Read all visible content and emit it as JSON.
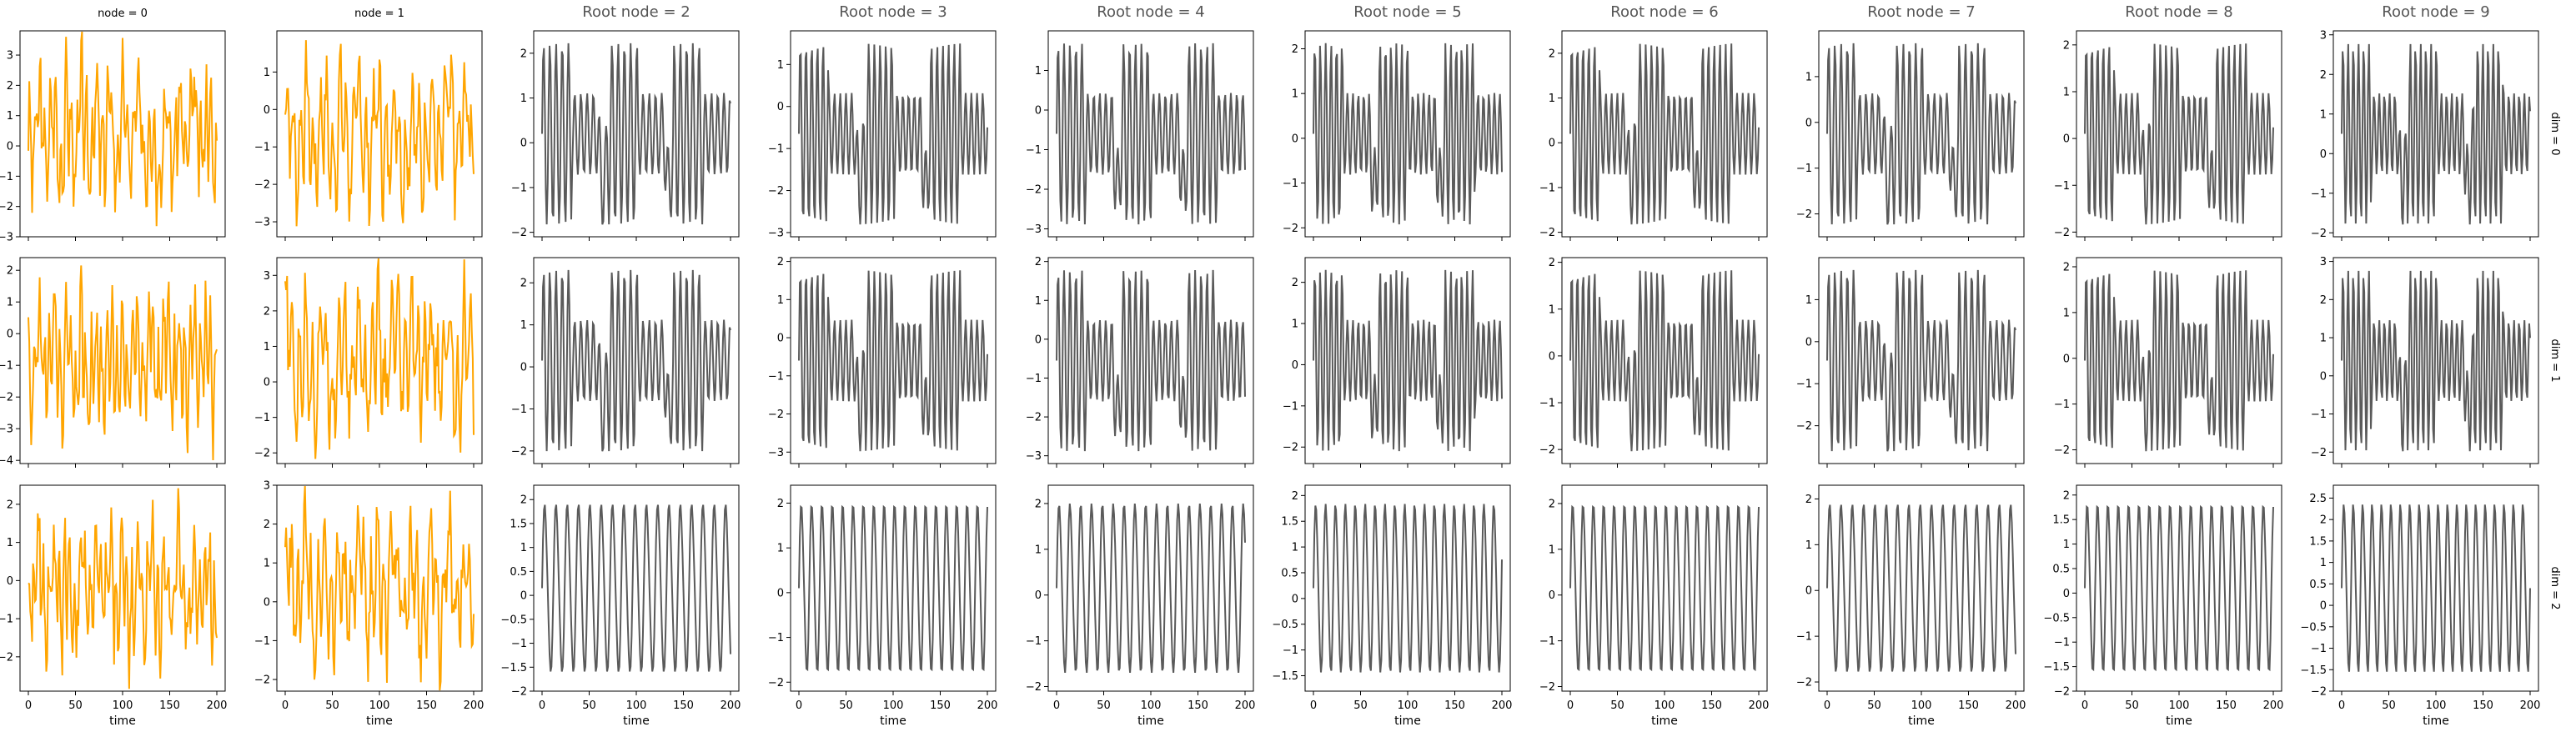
{
  "figure": {
    "xlabel": "time",
    "colors": {
      "observed": "#FFA500",
      "latent": "#5a5a5a",
      "axis": "#000000",
      "title_latent": "#555555"
    }
  },
  "chart_data": {
    "type": "line",
    "x": [
      0,
      200
    ],
    "xticks": [
      0,
      50,
      100,
      150,
      200
    ],
    "xlabel": "time",
    "rows": [
      "dim = 0",
      "dim = 1",
      "dim = 2"
    ],
    "columns": [
      {
        "title": "node = 0",
        "kind": "observed",
        "color": "#FFA500",
        "period": 5.5,
        "amp": 1.2,
        "seed": 3
      },
      {
        "title": "node = 1",
        "kind": "observed",
        "color": "#FFA500",
        "period": 7.0,
        "amp": 1.6,
        "seed": 7
      },
      {
        "title": "Root node = 2",
        "kind": "latent",
        "color": "#5a5a5a",
        "period": 12,
        "seed": 11
      },
      {
        "title": "Root node = 3",
        "kind": "latent",
        "color": "#5a5a5a",
        "period": 11,
        "seed": 13
      },
      {
        "title": "Root node = 4",
        "kind": "latent",
        "color": "#5a5a5a",
        "period": 11.5,
        "seed": 17
      },
      {
        "title": "Root node = 5",
        "kind": "latent",
        "color": "#5a5a5a",
        "period": 10.5,
        "seed": 19
      },
      {
        "title": "Root node = 6",
        "kind": "latent",
        "color": "#5a5a5a",
        "period": 11,
        "seed": 23
      },
      {
        "title": "Root node = 7",
        "kind": "latent",
        "color": "#5a5a5a",
        "period": 12,
        "seed": 29
      },
      {
        "title": "Root node = 8",
        "kind": "latent",
        "color": "#5a5a5a",
        "period": 11,
        "seed": 31
      },
      {
        "title": "Root node = 9",
        "kind": "latent",
        "color": "#5a5a5a",
        "period": 10,
        "seed": 37
      }
    ],
    "panels": [
      [
        {
          "ylim": [
            -3,
            3.8
          ],
          "yticks": [
            -3,
            -2,
            -1,
            0,
            1,
            2,
            3
          ]
        },
        {
          "ylim": [
            -3.4,
            2.1
          ],
          "yticks": [
            -3,
            -2,
            -1,
            0,
            1
          ]
        },
        {
          "ylim": [
            -2.1,
            2.5
          ],
          "yticks": [
            -2,
            -1,
            0,
            1,
            2
          ]
        },
        {
          "ylim": [
            -3.1,
            1.8
          ],
          "yticks": [
            -3,
            -2,
            -1,
            0,
            1
          ]
        },
        {
          "ylim": [
            -3.2,
            2.0
          ],
          "yticks": [
            -3,
            -2,
            -1,
            0,
            1
          ]
        },
        {
          "ylim": [
            -2.2,
            2.4
          ],
          "yticks": [
            -2,
            -1,
            0,
            1,
            2
          ]
        },
        {
          "ylim": [
            -2.1,
            2.5
          ],
          "yticks": [
            -2,
            -1,
            0,
            1,
            2
          ]
        },
        {
          "ylim": [
            -2.5,
            2.0
          ],
          "yticks": [
            -2,
            -1,
            0,
            1
          ]
        },
        {
          "ylim": [
            -2.1,
            2.3
          ],
          "yticks": [
            -2,
            -1,
            0,
            1,
            2
          ]
        },
        {
          "ylim": [
            -2.1,
            3.1
          ],
          "yticks": [
            -2,
            -1,
            0,
            1,
            2,
            3
          ]
        }
      ],
      [
        {
          "ylim": [
            -4.1,
            2.4
          ],
          "yticks": [
            -4,
            -3,
            -2,
            -1,
            0,
            1,
            2
          ]
        },
        {
          "ylim": [
            -2.3,
            3.5
          ],
          "yticks": [
            -2,
            -1,
            0,
            1,
            2,
            3
          ]
        },
        {
          "ylim": [
            -2.3,
            2.6
          ],
          "yticks": [
            -2,
            -1,
            0,
            1,
            2
          ]
        },
        {
          "ylim": [
            -3.3,
            2.1
          ],
          "yticks": [
            -3,
            -2,
            -1,
            0,
            1,
            2
          ]
        },
        {
          "ylim": [
            -3.2,
            2.1
          ],
          "yticks": [
            -3,
            -2,
            -1,
            0,
            1,
            2
          ]
        },
        {
          "ylim": [
            -2.4,
            2.6
          ],
          "yticks": [
            -2,
            -1,
            0,
            1,
            2
          ]
        },
        {
          "ylim": [
            -2.3,
            2.1
          ],
          "yticks": [
            -2,
            -1,
            0,
            1,
            2
          ]
        },
        {
          "ylim": [
            -2.9,
            2.0
          ],
          "yticks": [
            -2,
            -1,
            0,
            1
          ]
        },
        {
          "ylim": [
            -2.3,
            2.2
          ],
          "yticks": [
            -2,
            -1,
            0,
            1,
            2
          ]
        },
        {
          "ylim": [
            -2.3,
            3.1
          ],
          "yticks": [
            -2,
            -1,
            0,
            1,
            2,
            3
          ]
        }
      ],
      [
        {
          "ylim": [
            -2.9,
            2.5
          ],
          "yticks": [
            -2,
            -1,
            0,
            1,
            2
          ]
        },
        {
          "ylim": [
            -2.3,
            3.0
          ],
          "yticks": [
            -2,
            -1,
            0,
            1,
            2,
            3
          ]
        },
        {
          "ylim": [
            -2.0,
            2.3
          ],
          "yticks": [
            -2.0,
            -1.5,
            -1.0,
            -0.5,
            0.0,
            0.5,
            1.0,
            1.5,
            2.0
          ]
        },
        {
          "ylim": [
            -2.2,
            2.4
          ],
          "yticks": [
            -2,
            -1,
            0,
            1,
            2
          ]
        },
        {
          "ylim": [
            -2.1,
            2.4
          ],
          "yticks": [
            -2,
            -1,
            0,
            1,
            2
          ]
        },
        {
          "ylim": [
            -1.8,
            2.2
          ],
          "yticks": [
            -1.5,
            -1.0,
            -0.5,
            0.0,
            0.5,
            1.0,
            1.5,
            2.0
          ]
        },
        {
          "ylim": [
            -2.1,
            2.4
          ],
          "yticks": [
            -2,
            -1,
            0,
            1,
            2
          ]
        },
        {
          "ylim": [
            -2.2,
            2.3
          ],
          "yticks": [
            -2,
            -1,
            0,
            1,
            2
          ]
        },
        {
          "ylim": [
            -2.0,
            2.2
          ],
          "yticks": [
            -2.0,
            -1.5,
            -1.0,
            -0.5,
            0.0,
            0.5,
            1.0,
            1.5,
            2.0
          ]
        },
        {
          "ylim": [
            -2.0,
            2.8
          ],
          "yticks": [
            -2.0,
            -1.5,
            -1.0,
            -0.5,
            0.0,
            0.5,
            1.0,
            1.5,
            2.0,
            2.5
          ]
        }
      ]
    ]
  }
}
